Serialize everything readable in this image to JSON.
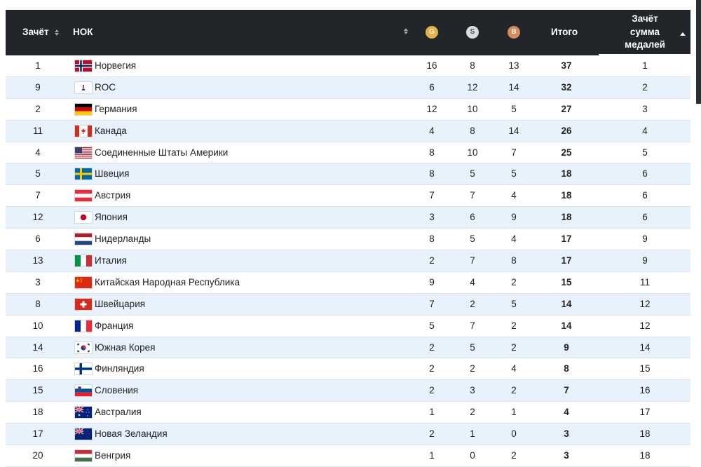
{
  "header": {
    "rank_label": "Зачёт",
    "nok_label": "НОК",
    "gold_badge": "G",
    "silver_badge": "S",
    "bronze_badge": "B",
    "total_label": "Итого",
    "sum_label_line1": "Зачёт",
    "sum_label_line2": "сумма",
    "sum_label_line3": "медалей"
  },
  "colors": {
    "header_bg": "#22262b",
    "row_alt": "#e8f2fd",
    "gold": "#e7b04a",
    "silver": "#d9dde2",
    "bronze": "#d78a5d"
  },
  "rows": [
    {
      "rank": "1",
      "country": "Норвегия",
      "flag": "norway",
      "gold": "16",
      "silver": "8",
      "bronze": "13",
      "total": "37",
      "sum_rank": "1"
    },
    {
      "rank": "9",
      "country": "ROC",
      "flag": "roc",
      "gold": "6",
      "silver": "12",
      "bronze": "14",
      "total": "32",
      "sum_rank": "2"
    },
    {
      "rank": "2",
      "country": "Германия",
      "flag": "germany",
      "gold": "12",
      "silver": "10",
      "bronze": "5",
      "total": "27",
      "sum_rank": "3"
    },
    {
      "rank": "11",
      "country": "Канада",
      "flag": "canada",
      "gold": "4",
      "silver": "8",
      "bronze": "14",
      "total": "26",
      "sum_rank": "4"
    },
    {
      "rank": "4",
      "country": "Соединенные Штаты Америки",
      "flag": "usa",
      "gold": "8",
      "silver": "10",
      "bronze": "7",
      "total": "25",
      "sum_rank": "5"
    },
    {
      "rank": "5",
      "country": "Швеция",
      "flag": "sweden",
      "gold": "8",
      "silver": "5",
      "bronze": "5",
      "total": "18",
      "sum_rank": "6"
    },
    {
      "rank": "7",
      "country": "Австрия",
      "flag": "austria",
      "gold": "7",
      "silver": "7",
      "bronze": "4",
      "total": "18",
      "sum_rank": "6"
    },
    {
      "rank": "12",
      "country": "Япония",
      "flag": "japan",
      "gold": "3",
      "silver": "6",
      "bronze": "9",
      "total": "18",
      "sum_rank": "6"
    },
    {
      "rank": "6",
      "country": "Нидерланды",
      "flag": "netherlands",
      "gold": "8",
      "silver": "5",
      "bronze": "4",
      "total": "17",
      "sum_rank": "9"
    },
    {
      "rank": "13",
      "country": "Италия",
      "flag": "italy",
      "gold": "2",
      "silver": "7",
      "bronze": "8",
      "total": "17",
      "sum_rank": "9"
    },
    {
      "rank": "3",
      "country": "Китайская Народная Республика",
      "flag": "china",
      "gold": "9",
      "silver": "4",
      "bronze": "2",
      "total": "15",
      "sum_rank": "11"
    },
    {
      "rank": "8",
      "country": "Швейцария",
      "flag": "switzerland",
      "gold": "7",
      "silver": "2",
      "bronze": "5",
      "total": "14",
      "sum_rank": "12"
    },
    {
      "rank": "10",
      "country": "Франция",
      "flag": "france",
      "gold": "5",
      "silver": "7",
      "bronze": "2",
      "total": "14",
      "sum_rank": "12"
    },
    {
      "rank": "14",
      "country": "Южная Корея",
      "flag": "korea",
      "gold": "2",
      "silver": "5",
      "bronze": "2",
      "total": "9",
      "sum_rank": "14"
    },
    {
      "rank": "16",
      "country": "Финляндия",
      "flag": "finland",
      "gold": "2",
      "silver": "2",
      "bronze": "4",
      "total": "8",
      "sum_rank": "15"
    },
    {
      "rank": "15",
      "country": "Словения",
      "flag": "slovenia",
      "gold": "2",
      "silver": "3",
      "bronze": "2",
      "total": "7",
      "sum_rank": "16"
    },
    {
      "rank": "18",
      "country": "Австралия",
      "flag": "australia",
      "gold": "1",
      "silver": "2",
      "bronze": "1",
      "total": "4",
      "sum_rank": "17"
    },
    {
      "rank": "17",
      "country": "Новая Зеландия",
      "flag": "new-zealand",
      "gold": "2",
      "silver": "1",
      "bronze": "0",
      "total": "3",
      "sum_rank": "18"
    },
    {
      "rank": "20",
      "country": "Венгрия",
      "flag": "hungary",
      "gold": "1",
      "silver": "0",
      "bronze": "2",
      "total": "3",
      "sum_rank": "18"
    }
  ]
}
